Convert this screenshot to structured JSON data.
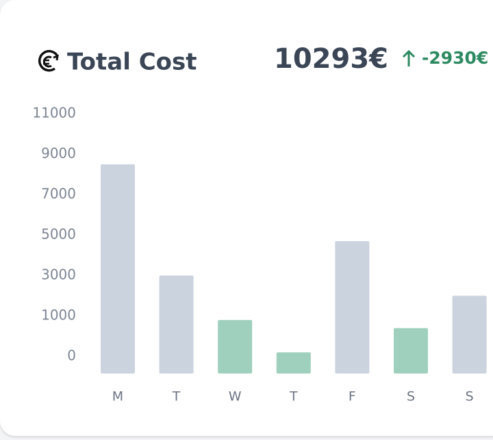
{
  "chart_data": {
    "type": "bar",
    "title": "Total Cost",
    "total": "10293€",
    "change": "-2930€",
    "categories": [
      "M",
      "T",
      "W",
      "T",
      "F",
      "S",
      "S"
    ],
    "values": [
      8500,
      3000,
      900,
      100,
      4700,
      700,
      2000
    ],
    "colors": [
      "#cbd3df",
      "#cbd3df",
      "#9fd0bd",
      "#9fd0bd",
      "#cbd3df",
      "#9fd0bd",
      "#cbd3df"
    ],
    "ylim": [
      0,
      11000
    ],
    "yticks": [
      0,
      1000,
      3000,
      5000,
      7000,
      9000,
      11000
    ],
    "grid": false
  }
}
